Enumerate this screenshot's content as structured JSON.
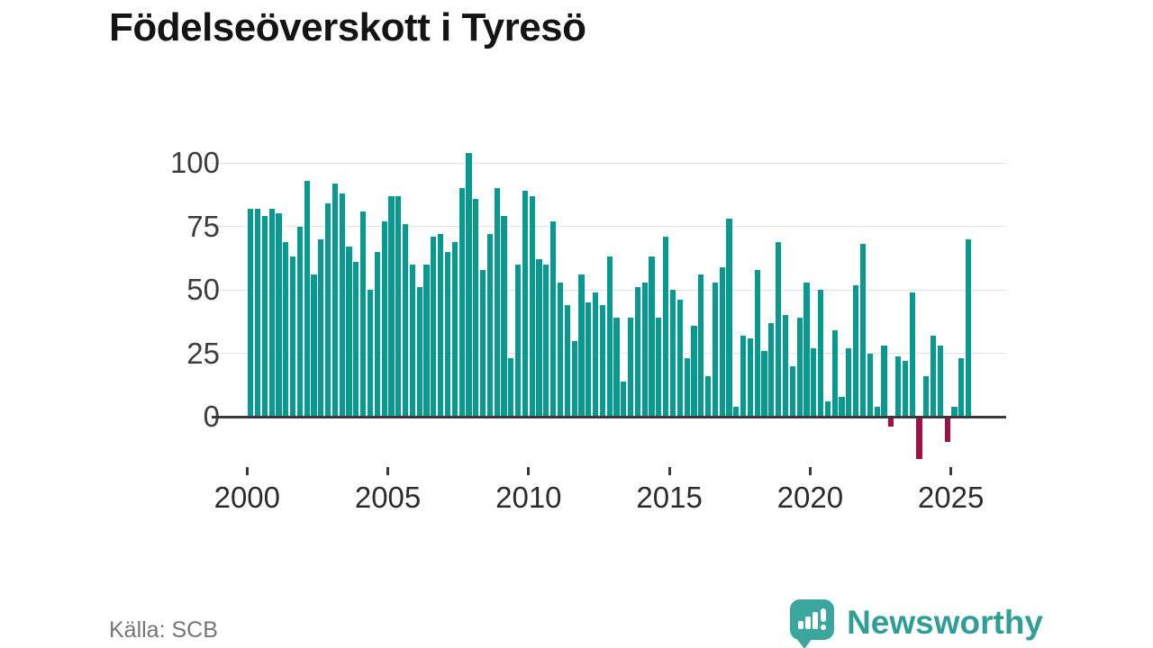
{
  "title": "Födelseöverskott i Tyresö",
  "footer": {
    "source_label": "Källa: SCB"
  },
  "branding": {
    "logo_text": "Newsworthy",
    "logo_icon": "newsworthy-speech-bubble-bar-chart-icon",
    "logo_color": "#3aa69d",
    "logo_text_color": "#2f9f96"
  },
  "colors": {
    "bar_positive": "#089a91",
    "bar_negative": "#a50d45",
    "axis": "#3a3a3a",
    "gridline": "#e3e3e3",
    "title_text": "#141414",
    "tick_text": "#3d3d3d",
    "source_text": "#757575"
  },
  "chart_data": {
    "type": "bar",
    "title": "Födelseöverskott i Tyresö",
    "xlabel": "",
    "ylabel": "",
    "start_year": 2000,
    "periods_per_year": 4,
    "x_tick_labels": [
      "2000",
      "2005",
      "2010",
      "2015",
      "2020",
      "2025"
    ],
    "y_ticks": [
      0,
      25,
      50,
      75,
      100
    ],
    "ylim": [
      -20,
      107
    ],
    "grid": "horizontal",
    "legend": "none",
    "values": [
      82,
      82,
      79,
      82,
      80,
      69,
      63,
      75,
      93,
      56,
      70,
      84,
      92,
      88,
      67,
      61,
      81,
      50,
      65,
      77,
      87,
      87,
      76,
      60,
      51,
      60,
      71,
      72,
      65,
      69,
      90,
      104,
      86,
      58,
      72,
      90,
      79,
      23,
      60,
      89,
      87,
      62,
      60,
      77,
      53,
      44,
      30,
      56,
      45,
      49,
      44,
      63,
      39,
      14,
      39,
      51,
      53,
      63,
      39,
      71,
      50,
      46,
      23,
      36,
      56,
      16,
      53,
      59,
      78,
      4,
      32,
      31,
      58,
      26,
      37,
      69,
      40,
      20,
      39,
      53,
      27,
      50,
      6,
      34,
      8,
      27,
      52,
      68,
      25,
      4,
      28,
      -3,
      24,
      22,
      49,
      -16,
      16,
      32,
      28,
      -9,
      4,
      23,
      70
    ]
  }
}
